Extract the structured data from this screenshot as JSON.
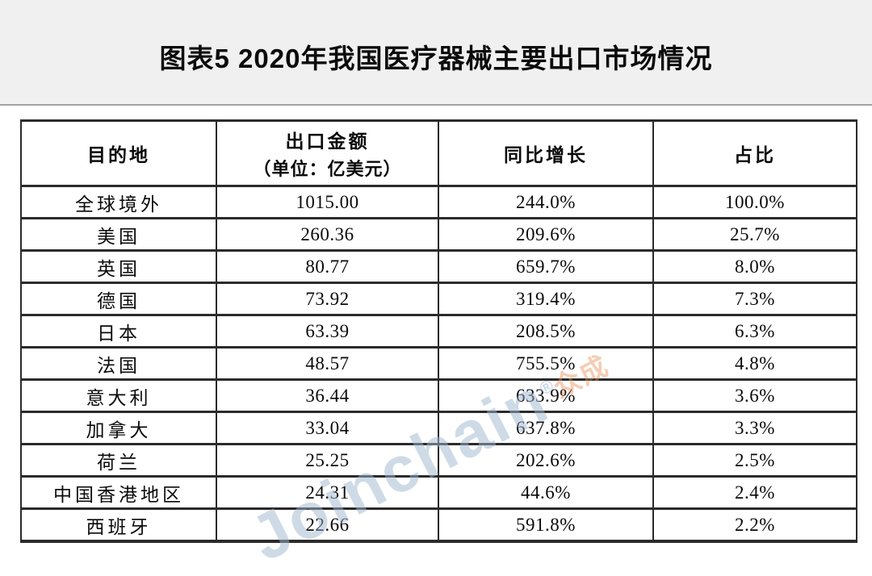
{
  "page": {
    "title": "图表5 2020年我国医疗器械主要出口市场情况"
  },
  "watermark": {
    "brand": "Joinchain",
    "reg": "®",
    "suffix": "众成",
    "brand_color": "#9db8ce",
    "suffix_color": "#e8905a"
  },
  "table": {
    "headers": [
      {
        "label": "目的地",
        "sub": ""
      },
      {
        "label": "出口金额",
        "sub": "（单位：亿美元）"
      },
      {
        "label": "同比增长",
        "sub": ""
      },
      {
        "label": "占比",
        "sub": ""
      }
    ],
    "rows": [
      [
        "全球境外",
        "1015.00",
        "244.0%",
        "100.0%"
      ],
      [
        "美国",
        "260.36",
        "209.6%",
        "25.7%"
      ],
      [
        "英国",
        "80.77",
        "659.7%",
        "8.0%"
      ],
      [
        "德国",
        "73.92",
        "319.4%",
        "7.3%"
      ],
      [
        "日本",
        "63.39",
        "208.5%",
        "6.3%"
      ],
      [
        "法国",
        "48.57",
        "755.5%",
        "4.8%"
      ],
      [
        "意大利",
        "36.44",
        "633.9%",
        "3.6%"
      ],
      [
        "加拿大",
        "33.04",
        "637.8%",
        "3.3%"
      ],
      [
        "荷兰",
        "25.25",
        "202.6%",
        "2.5%"
      ],
      [
        "中国香港地区",
        "24.31",
        "44.6%",
        "2.4%"
      ],
      [
        "西班牙",
        "22.66",
        "591.8%",
        "2.2%"
      ]
    ]
  },
  "chart_data": {
    "type": "table",
    "title": "图表5 2020年我国医疗器械主要出口市场情况",
    "columns": [
      "目的地",
      "出口金额（单位：亿美元）",
      "同比增长",
      "占比"
    ],
    "destinations": [
      "全球境外",
      "美国",
      "英国",
      "德国",
      "日本",
      "法国",
      "意大利",
      "加拿大",
      "荷兰",
      "中国香港地区",
      "西班牙"
    ],
    "export_value_100m_usd": [
      1015.0,
      260.36,
      80.77,
      73.92,
      63.39,
      48.57,
      36.44,
      33.04,
      25.25,
      24.31,
      22.66
    ],
    "yoy_growth_pct": [
      244.0,
      209.6,
      659.7,
      319.4,
      208.5,
      755.5,
      633.9,
      637.8,
      202.6,
      44.6,
      591.8
    ],
    "share_pct": [
      100.0,
      25.7,
      8.0,
      7.3,
      6.3,
      4.8,
      3.6,
      3.3,
      2.5,
      2.4,
      2.2
    ]
  }
}
